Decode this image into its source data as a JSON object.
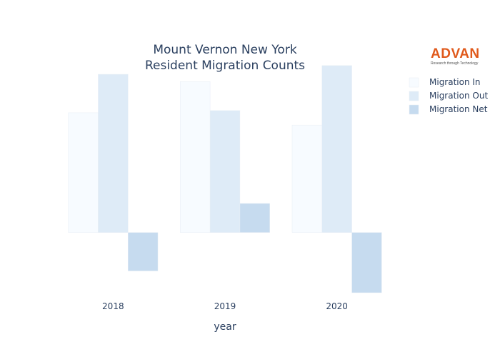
{
  "chart_data": {
    "type": "bar",
    "title_lines": [
      "Mount Vernon New York",
      "Resident Migration Counts"
    ],
    "xlabel": "year",
    "ylabel": "",
    "categories": [
      "2018",
      "2019",
      "2020"
    ],
    "ylim": [
      -85,
      220
    ],
    "series": [
      {
        "name": "Migration In",
        "values": [
          165,
          208,
          148
        ],
        "color": "#f7fbff"
      },
      {
        "name": "Migration Out",
        "values": [
          218,
          168,
          230
        ],
        "color": "#deebf7"
      },
      {
        "name": "Migration Net",
        "values": [
          -53,
          40,
          -83
        ],
        "color": "#c6dbef"
      }
    ]
  },
  "logo": {
    "word": "ADVAN",
    "tagline": "Research through Technology"
  },
  "colors": {
    "text": "#2a3f5f",
    "logo": "#e05a1c"
  }
}
